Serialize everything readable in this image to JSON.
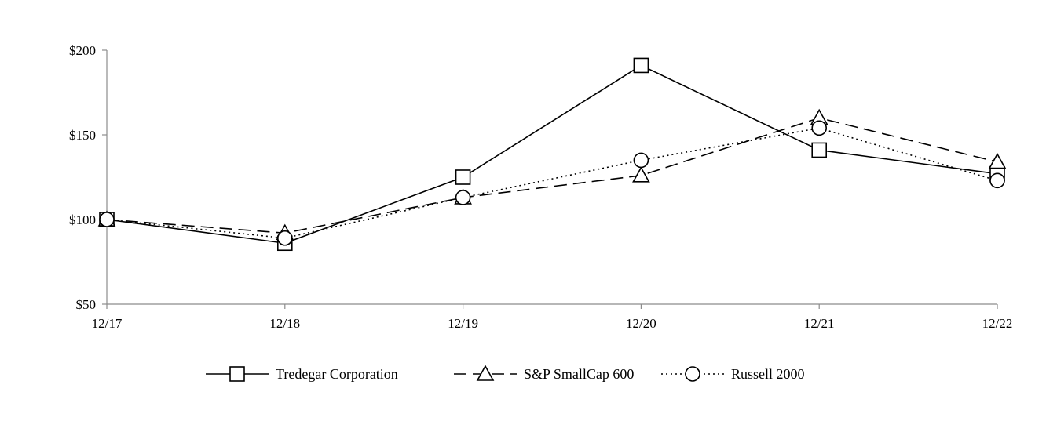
{
  "chart_data": {
    "type": "line",
    "categories": [
      "12/17",
      "12/18",
      "12/19",
      "12/20",
      "12/21",
      "12/22"
    ],
    "ylim": [
      50,
      200
    ],
    "yticks": [
      50,
      100,
      150,
      200
    ],
    "ytick_labels": [
      "$50",
      "$100",
      "$150",
      "$200"
    ],
    "grid": false,
    "legend_position": "bottom",
    "series": [
      {
        "name": "Tredegar Corporation",
        "marker": "square",
        "dash": "solid",
        "color": "#000000",
        "values": [
          100,
          86,
          125,
          191,
          141,
          127
        ]
      },
      {
        "name": "S&P SmallCap 600",
        "marker": "triangle",
        "dash": "dashed",
        "color": "#000000",
        "values": [
          100,
          92,
          113,
          126,
          160,
          134
        ]
      },
      {
        "name": "Russell 2000",
        "marker": "circle",
        "dash": "dotted",
        "color": "#000000",
        "values": [
          100,
          89,
          113,
          135,
          154,
          123
        ]
      }
    ]
  }
}
